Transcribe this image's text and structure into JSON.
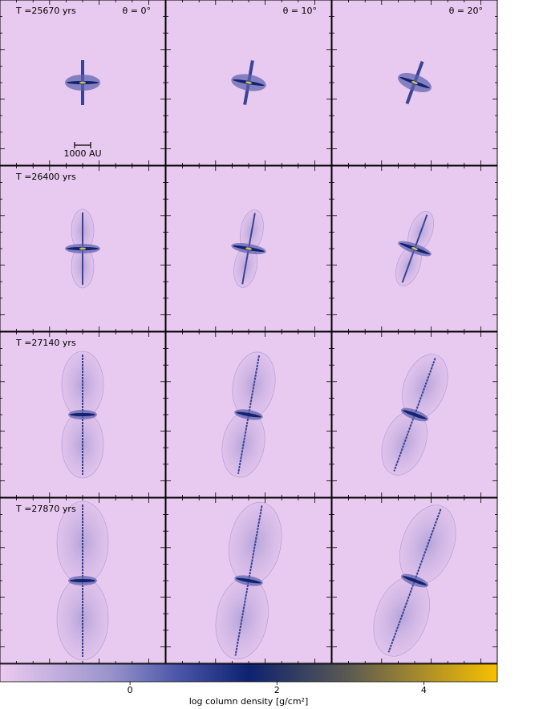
{
  "panels": {
    "rows": [
      {
        "time": "T =25670 yrs"
      },
      {
        "time": "T =26400 yrs"
      },
      {
        "time": "T =27140 yrs"
      },
      {
        "time": "T =27870 yrs"
      }
    ],
    "columns": [
      {
        "angle": "θ = 0°"
      },
      {
        "angle": "θ = 10°"
      },
      {
        "angle": "θ = 20°"
      }
    ],
    "scale_bar": "1000 AU"
  },
  "colorbar": {
    "lim": [
      -1.77,
      5.0
    ],
    "ticks": [
      0,
      2,
      4
    ],
    "label": "log column density [g/cm²]"
  }
}
